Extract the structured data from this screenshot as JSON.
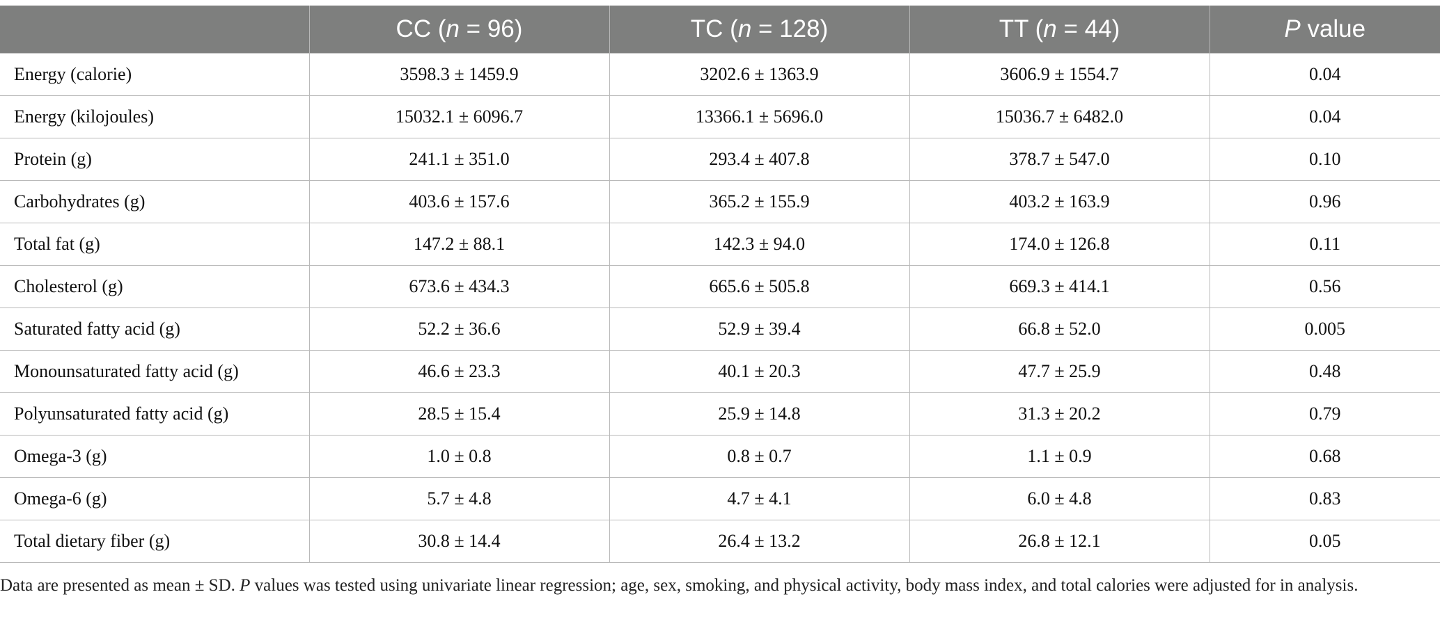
{
  "table": {
    "headers": [
      {
        "key": "variable",
        "pre": "",
        "italic": "",
        "post": ""
      },
      {
        "key": "cc",
        "pre": "CC (",
        "italic": "n",
        "post": " = 96)"
      },
      {
        "key": "tc",
        "pre": "TC (",
        "italic": "n",
        "post": " = 128)"
      },
      {
        "key": "tt",
        "pre": "TT (",
        "italic": "n",
        "post": " = 44)"
      },
      {
        "key": "p",
        "pre": "",
        "italic": "P",
        "post": " value"
      }
    ],
    "rows": [
      {
        "label": "Energy (calorie)",
        "cc": "3598.3 ± 1459.9",
        "tc": "3202.6 ± 1363.9",
        "tt": "3606.9 ± 1554.7",
        "p": "0.04"
      },
      {
        "label": "Energy (kilojoules)",
        "cc": "15032.1 ± 6096.7",
        "tc": "13366.1 ± 5696.0",
        "tt": "15036.7 ± 6482.0",
        "p": "0.04"
      },
      {
        "label": "Protein (g)",
        "cc": "241.1 ± 351.0",
        "tc": "293.4 ± 407.8",
        "tt": "378.7 ± 547.0",
        "p": "0.10"
      },
      {
        "label": "Carbohydrates (g)",
        "cc": "403.6 ± 157.6",
        "tc": "365.2 ± 155.9",
        "tt": "403.2 ± 163.9",
        "p": "0.96"
      },
      {
        "label": "Total fat (g)",
        "cc": "147.2 ± 88.1",
        "tc": "142.3 ± 94.0",
        "tt": "174.0 ± 126.8",
        "p": "0.11"
      },
      {
        "label": "Cholesterol (g)",
        "cc": "673.6 ± 434.3",
        "tc": "665.6 ± 505.8",
        "tt": "669.3 ± 414.1",
        "p": "0.56"
      },
      {
        "label": "Saturated fatty acid (g)",
        "cc": "52.2 ± 36.6",
        "tc": "52.9 ± 39.4",
        "tt": "66.8 ± 52.0",
        "p": "0.005"
      },
      {
        "label": "Monounsaturated fatty acid (g)",
        "cc": "46.6 ± 23.3",
        "tc": "40.1 ± 20.3",
        "tt": "47.7 ± 25.9",
        "p": "0.48"
      },
      {
        "label": "Polyunsaturated fatty acid (g)",
        "cc": "28.5 ± 15.4",
        "tc": "25.9 ± 14.8",
        "tt": "31.3 ± 20.2",
        "p": "0.79"
      },
      {
        "label": "Omega-3 (g)",
        "cc": "1.0 ± 0.8",
        "tc": "0.8 ± 0.7",
        "tt": "1.1 ± 0.9",
        "p": "0.68"
      },
      {
        "label": "Omega-6 (g)",
        "cc": "5.7 ± 4.8",
        "tc": "4.7 ± 4.1",
        "tt": "6.0 ± 4.8",
        "p": "0.83"
      },
      {
        "label": "Total dietary fiber (g)",
        "cc": "30.8 ± 14.4",
        "tc": "26.4 ± 13.2",
        "tt": "26.8 ± 12.1",
        "p": "0.05"
      }
    ]
  },
  "footnote": {
    "part1": "Data are presented as mean ± SD. ",
    "italic": "P",
    "part2": " values was tested using univariate linear regression; age, sex, smoking, and physical activity, body mass index, and total calories were adjusted for in analysis."
  }
}
